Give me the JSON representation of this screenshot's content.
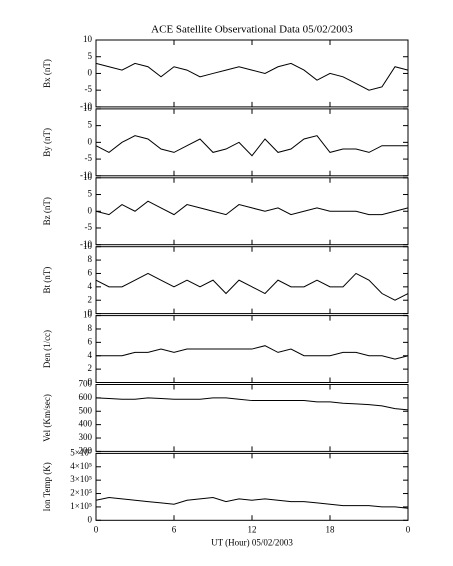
{
  "chart_data": [
    {
      "type": "line",
      "title": "ACE Satellite Observational Data   05/02/2003",
      "ylabel": "Bx (nT)",
      "color": "#000000",
      "x": [
        0,
        1,
        2,
        3,
        4,
        5,
        6,
        7,
        8,
        9,
        10,
        11,
        12,
        13,
        14,
        15,
        16,
        17,
        18,
        19,
        20,
        21,
        22,
        23,
        24
      ],
      "values": [
        3,
        2,
        1,
        3,
        2,
        -1,
        2,
        1,
        -1,
        0,
        1,
        2,
        1,
        0,
        2,
        3,
        1,
        -2,
        0,
        -1,
        -3,
        -5,
        -4,
        2,
        1
      ],
      "xlim": [
        0,
        24
      ],
      "ylim": [
        -10,
        10
      ],
      "yticks": [
        -10,
        -5,
        0,
        5,
        10
      ]
    },
    {
      "type": "line",
      "ylabel": "By (nT)",
      "color": "#000000",
      "x": [
        0,
        1,
        2,
        3,
        4,
        5,
        6,
        7,
        8,
        9,
        10,
        11,
        12,
        13,
        14,
        15,
        16,
        17,
        18,
        19,
        20,
        21,
        22,
        23,
        24
      ],
      "values": [
        -1,
        -3,
        0,
        2,
        1,
        -2,
        -3,
        -1,
        1,
        -3,
        -2,
        0,
        -4,
        1,
        -3,
        -2,
        1,
        2,
        -3,
        -2,
        -2,
        -3,
        -1,
        -1,
        -1
      ],
      "xlim": [
        0,
        24
      ],
      "ylim": [
        -10,
        10
      ],
      "yticks": [
        -10,
        -5,
        0,
        5,
        10
      ]
    },
    {
      "type": "line",
      "ylabel": "Bz (nT)",
      "color": "#000000",
      "x": [
        0,
        1,
        2,
        3,
        4,
        5,
        6,
        7,
        8,
        9,
        10,
        11,
        12,
        13,
        14,
        15,
        16,
        17,
        18,
        19,
        20,
        21,
        22,
        23,
        24
      ],
      "values": [
        0,
        -1,
        2,
        0,
        3,
        1,
        -1,
        2,
        1,
        0,
        -1,
        2,
        1,
        0,
        1,
        -1,
        0,
        1,
        0,
        0,
        0,
        -1,
        -1,
        0,
        1
      ],
      "xlim": [
        0,
        24
      ],
      "ylim": [
        -10,
        10
      ],
      "yticks": [
        -10,
        -5,
        0,
        5,
        10
      ]
    },
    {
      "type": "line",
      "ylabel": "Bt (nT)",
      "color": "#000000",
      "x": [
        0,
        1,
        2,
        3,
        4,
        5,
        6,
        7,
        8,
        9,
        10,
        11,
        12,
        13,
        14,
        15,
        16,
        17,
        18,
        19,
        20,
        21,
        22,
        23,
        24
      ],
      "values": [
        5,
        4,
        4,
        5,
        6,
        5,
        4,
        5,
        4,
        5,
        3,
        5,
        4,
        3,
        5,
        4,
        4,
        5,
        4,
        4,
        6,
        5,
        3,
        2,
        3
      ],
      "xlim": [
        0,
        24
      ],
      "ylim": [
        0,
        10
      ],
      "yticks": [
        0,
        2,
        4,
        6,
        8,
        10
      ]
    },
    {
      "type": "line",
      "ylabel": "Den (1/cc)",
      "color": "#000000",
      "x": [
        0,
        1,
        2,
        3,
        4,
        5,
        6,
        7,
        8,
        9,
        10,
        11,
        12,
        13,
        14,
        15,
        16,
        17,
        18,
        19,
        20,
        21,
        22,
        23,
        24
      ],
      "values": [
        4,
        4,
        4,
        4.5,
        4.5,
        5,
        4.5,
        5,
        5,
        5,
        5,
        5,
        5,
        5.5,
        4.5,
        5,
        4,
        4,
        4,
        4.5,
        4.5,
        4,
        4,
        3.5,
        4
      ],
      "xlim": [
        0,
        24
      ],
      "ylim": [
        0,
        10
      ],
      "yticks": [
        0,
        2,
        4,
        6,
        8,
        10
      ]
    },
    {
      "type": "line",
      "ylabel": "Vel (Km/sec)",
      "color": "#000000",
      "x": [
        0,
        1,
        2,
        3,
        4,
        5,
        6,
        7,
        8,
        9,
        10,
        11,
        12,
        13,
        14,
        15,
        16,
        17,
        18,
        19,
        20,
        21,
        22,
        23,
        24
      ],
      "values": [
        600,
        595,
        590,
        590,
        600,
        595,
        590,
        590,
        590,
        600,
        600,
        590,
        580,
        580,
        580,
        580,
        580,
        570,
        570,
        560,
        555,
        550,
        540,
        520,
        510
      ],
      "xlim": [
        0,
        24
      ],
      "ylim": [
        200,
        700
      ],
      "yticks": [
        200,
        300,
        400,
        500,
        600,
        700
      ]
    },
    {
      "type": "line",
      "ylabel": "Ion Temp (K)",
      "xlabel": "UT (Hour)   05/02/2003",
      "color": "#000000",
      "x": [
        0,
        1,
        2,
        3,
        4,
        5,
        6,
        7,
        8,
        9,
        10,
        11,
        12,
        13,
        14,
        15,
        16,
        17,
        18,
        19,
        20,
        21,
        22,
        23,
        24
      ],
      "values": [
        150000,
        170000,
        160000,
        150000,
        140000,
        130000,
        120000,
        150000,
        160000,
        170000,
        140000,
        160000,
        150000,
        160000,
        150000,
        140000,
        140000,
        130000,
        120000,
        110000,
        110000,
        110000,
        100000,
        100000,
        90000
      ],
      "xlim": [
        0,
        24
      ],
      "ylim": [
        0,
        500000
      ],
      "yticks": [
        0,
        {
          "value": 100000,
          "label": "1×10⁵"
        },
        {
          "value": 200000,
          "label": "2×10⁵"
        },
        {
          "value": 300000,
          "label": "3×10⁵"
        },
        {
          "value": 400000,
          "label": "4×10⁵"
        },
        {
          "value": 500000,
          "label": "5×10⁵"
        }
      ],
      "xticks": [
        0,
        6,
        12,
        18,
        {
          "value": 24,
          "label": "0"
        }
      ]
    }
  ]
}
